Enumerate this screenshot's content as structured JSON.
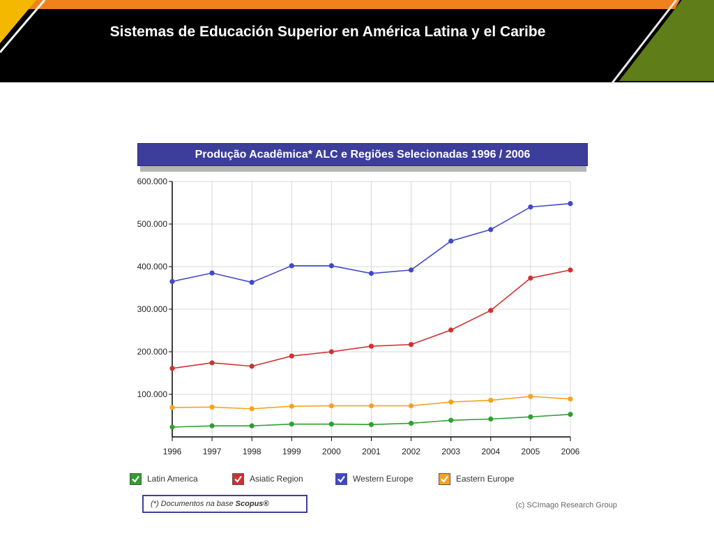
{
  "slide": {
    "title": "Sistemas de Educación Superior en América Latina y el Caribe",
    "colors": {
      "header": "#000000",
      "orange": "#f0821e",
      "green": "#5f7d18",
      "yellow": "#f5b800"
    }
  },
  "chart_header": "Produção Acadêmica*  ALC e Regiões Selecionadas 1996 / 2006",
  "chart_data": {
    "type": "line",
    "x": [
      1996,
      1997,
      1998,
      1999,
      2000,
      2001,
      2002,
      2003,
      2004,
      2005,
      2006
    ],
    "x_tick_labels": [
      "1996",
      "1997",
      "1998",
      "1999",
      "2000",
      "2001",
      "2002",
      "2003",
      "2004",
      "2005",
      "2006"
    ],
    "ylim": [
      0,
      600000
    ],
    "y_ticks": [
      100000,
      200000,
      300000,
      400000,
      500000,
      600000
    ],
    "y_tick_labels": [
      "100.000",
      "200.000",
      "300.000",
      "400.000",
      "500.000",
      "600.000"
    ],
    "grid": true,
    "legend_position": "bottom",
    "series": [
      {
        "name": "Latin America",
        "color": "#2ea02e",
        "values": [
          23000,
          26000,
          26000,
          30000,
          30000,
          29000,
          32000,
          39000,
          42000,
          47000,
          53000
        ]
      },
      {
        "name": "Asiatic Region",
        "color": "#d32f2f",
        "values": [
          161000,
          174000,
          166000,
          190000,
          200000,
          213000,
          217000,
          251000,
          297000,
          373000,
          392000
        ]
      },
      {
        "name": "Western Europe",
        "color": "#3f48cc",
        "values": [
          365000,
          385000,
          363000,
          402000,
          402000,
          384000,
          392000,
          460000,
          487000,
          540000,
          548000
        ]
      },
      {
        "name": "Eastern Europe",
        "color": "#f7a21b",
        "values": [
          69000,
          70000,
          66000,
          72000,
          73000,
          73000,
          73000,
          82000,
          86000,
          95000,
          89000
        ]
      }
    ]
  },
  "footnote": {
    "prefix": "(*) Documentos na base ",
    "source": "Scopus®"
  },
  "credit": "(c) SCImago Research Group"
}
